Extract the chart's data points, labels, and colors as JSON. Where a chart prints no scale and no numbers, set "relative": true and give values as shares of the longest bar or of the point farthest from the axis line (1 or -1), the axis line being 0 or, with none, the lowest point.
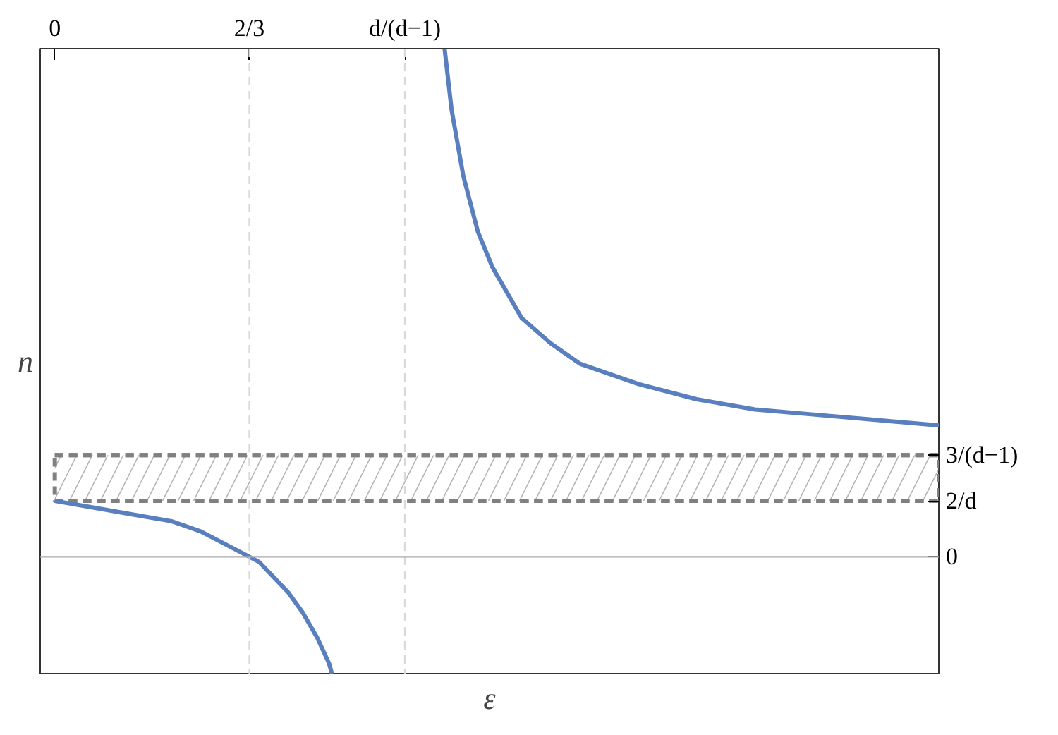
{
  "chart_data": {
    "type": "line",
    "xlabel": "ε",
    "ylabel": "n",
    "relative": true,
    "xlim": [
      -0.05,
      3.03
    ],
    "xticks": [
      0,
      {
        "value": 0.667,
        "label": "2/3"
      },
      {
        "value": 1.2,
        "label": "d/(d−1)"
      }
    ],
    "series": [
      {
        "color": "#5a7fbf",
        "x": [
          0,
          0.1,
          0.2,
          0.3,
          0.4,
          0.5,
          0.6,
          0.667,
          0.7,
          0.75,
          0.8,
          0.85,
          0.9,
          0.94,
          0.95
        ],
        "values": [
          0.11,
          0.1,
          0.09,
          0.08,
          0.07,
          0.05,
          0.02,
          0,
          -0.01,
          -0.04,
          -0.07,
          -0.11,
          -0.16,
          -0.21,
          -0.23
        ]
      },
      {
        "color": "#5a7fbf",
        "x": [
          1.336,
          1.36,
          1.4,
          1.45,
          1.5,
          1.6,
          1.7,
          1.8,
          2.0,
          2.2,
          2.4,
          2.6,
          2.8,
          3.0,
          3.03
        ],
        "values": [
          1,
          0.88,
          0.75,
          0.64,
          0.57,
          0.47,
          0.42,
          0.38,
          0.34,
          0.31,
          0.29,
          0.28,
          0.27,
          0.26,
          0.26
        ]
      }
    ],
    "ref_lines": [
      {
        "axis": "x",
        "value": 0.667,
        "color": "#d9d9d9",
        "line_style": "dashed"
      },
      {
        "axis": "x",
        "value": 1.2,
        "color": "#d9d9d9",
        "line_style": "dashed"
      },
      {
        "axis": "y",
        "value": 0,
        "label": "0",
        "color": "#aaaaaa",
        "line_style": "solid"
      },
      {
        "axis": "y",
        "value": 0.11,
        "label": "2/d",
        "color": "#808080",
        "line_style": "dashed"
      },
      {
        "axis": "y",
        "value": 0.2,
        "label": "3/(d−1)",
        "color": "#808080",
        "line_style": "dashed"
      }
    ],
    "bands": [
      {
        "axis": "y",
        "from": 0.11,
        "to": 0.2,
        "color": "#808080"
      }
    ],
    "grid": false,
    "marker": "none",
    "line_style": "solid"
  }
}
